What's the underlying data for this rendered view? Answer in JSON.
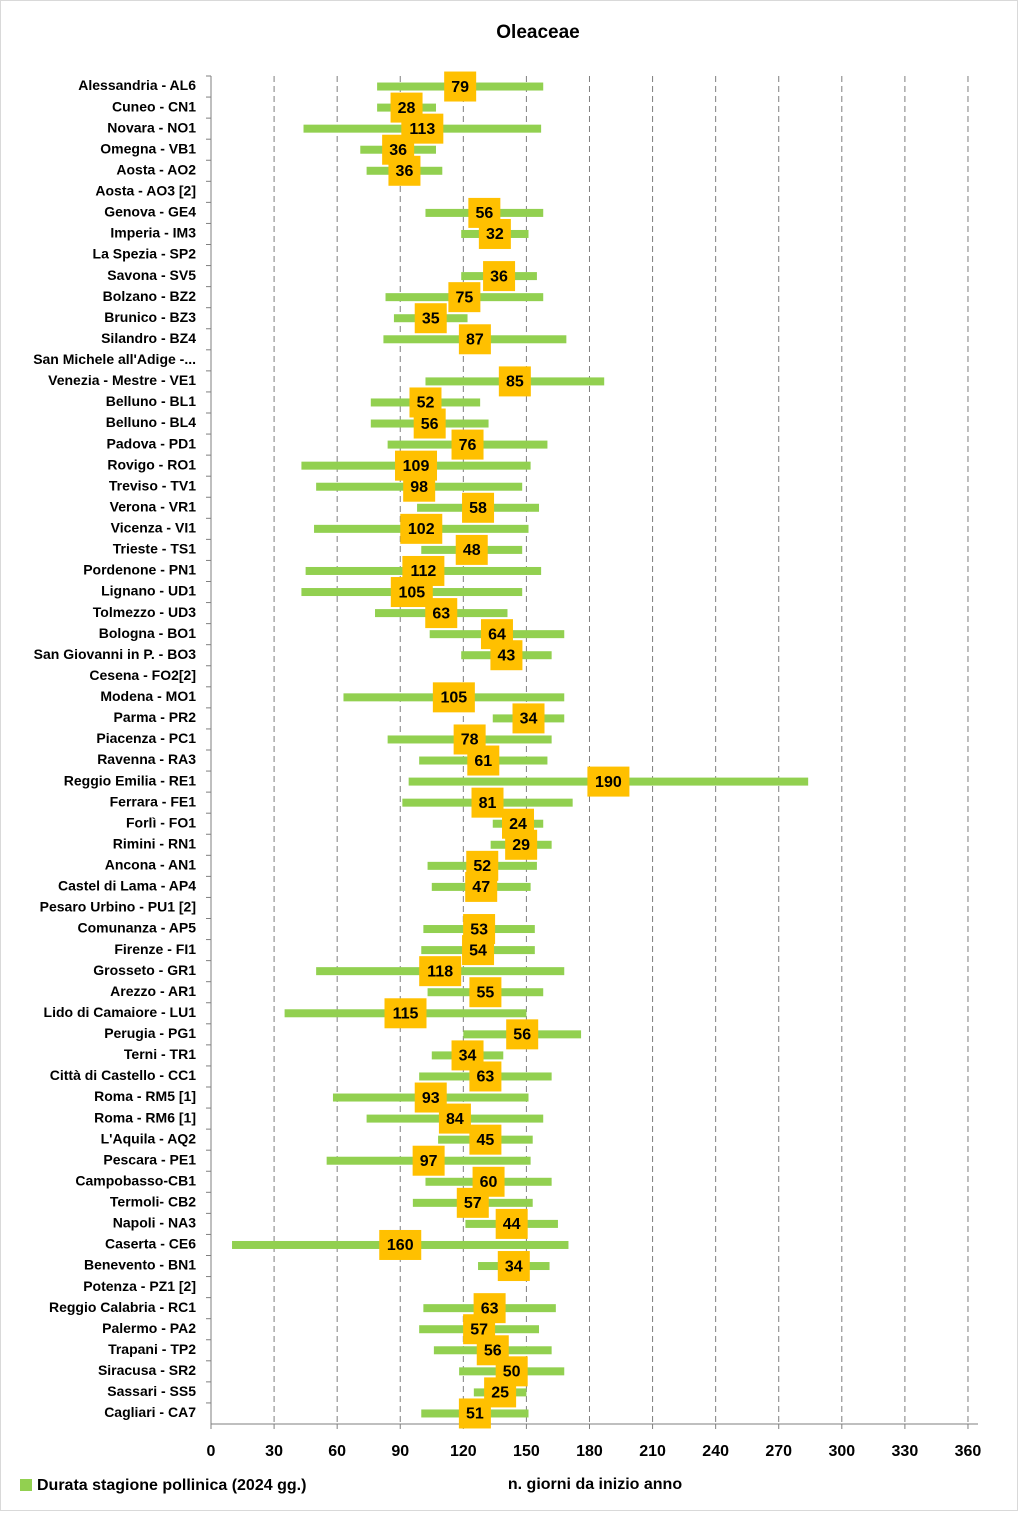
{
  "chart_data": {
    "type": "bar",
    "orientation": "horizontal",
    "stacked": true,
    "title": "Oleaceae",
    "x_label": "n. giorni da inizio anno",
    "categories": [
      "Alessandria - AL6",
      "Cuneo - CN1",
      "Novara - NO1",
      "Omegna - VB1",
      "Aosta - AO2",
      "Aosta - AO3 [2]",
      "Genova - GE4",
      "Imperia - IM3",
      "La Spezia - SP2",
      "Savona - SV5",
      "Bolzano - BZ2",
      "Brunico - BZ3",
      "Silandro - BZ4",
      "San Michele all'Adige -...",
      "Venezia - Mestre - VE1",
      "Belluno - BL1",
      "Belluno - BL4",
      "Padova - PD1",
      "Rovigo - RO1",
      "Treviso - TV1",
      "Verona - VR1",
      "Vicenza - VI1",
      "Trieste - TS1",
      "Pordenone - PN1",
      "Lignano - UD1",
      "Tolmezzo - UD3",
      "Bologna - BO1",
      "San Giovanni in P. - BO3",
      "Cesena - FO2[2]",
      "Modena - MO1",
      "Parma - PR2",
      "Piacenza - PC1",
      "Ravenna - RA3",
      "Reggio Emilia - RE1",
      "Ferrara - FE1",
      "Forlì - FO1",
      "Rimini - RN1",
      "Ancona - AN1",
      "Castel di Lama - AP4",
      "Pesaro Urbino - PU1 [2]",
      "Comunanza - AP5",
      "Firenze - FI1",
      "Grosseto - GR1",
      "Arezzo - AR1",
      "Lido di Camaiore - LU1",
      "Perugia - PG1",
      "Terni - TR1",
      "Città di Castello - CC1",
      "Roma - RM5 [1]",
      "Roma - RM6 [1]",
      "L'Aquila - AQ2",
      "Pescara - PE1",
      "Campobasso-CB1",
      "Termoli- CB2",
      "Napoli - NA3",
      "Caserta - CE6",
      "Benevento  - BN1",
      "Potenza - PZ1 [2]",
      "Reggio Calabria - RC1",
      "Palermo - PA2",
      "Trapani - TP2",
      "Siracusa - SR2",
      "Sassari - SS5",
      "Cagliari - CA7"
    ],
    "base": [
      79,
      79,
      44,
      71,
      74,
      null,
      102,
      119,
      null,
      119,
      83,
      87,
      82,
      null,
      102,
      76,
      76,
      84,
      43,
      50,
      98,
      49,
      100,
      45,
      43,
      78,
      104,
      119,
      null,
      63,
      134,
      84,
      99,
      94,
      91,
      134,
      133,
      103,
      105,
      null,
      101,
      100,
      50,
      103,
      35,
      120,
      105,
      99,
      58,
      74,
      108,
      55,
      102,
      96,
      121,
      10,
      127,
      null,
      101,
      99,
      106,
      118,
      125,
      100
    ],
    "series": [
      {
        "name": "Durata stagione pollinica (2024 gg.)",
        "color": "#92d050",
        "label_color": "#ffc000",
        "values": [
          79,
          28,
          113,
          36,
          36,
          null,
          56,
          32,
          null,
          36,
          75,
          35,
          87,
          null,
          85,
          52,
          56,
          76,
          109,
          98,
          58,
          102,
          48,
          112,
          105,
          63,
          64,
          43,
          null,
          105,
          34,
          78,
          61,
          190,
          81,
          24,
          29,
          52,
          47,
          null,
          53,
          54,
          118,
          55,
          115,
          56,
          34,
          63,
          93,
          84,
          45,
          97,
          60,
          57,
          44,
          160,
          34,
          null,
          63,
          57,
          56,
          50,
          25,
          51
        ]
      }
    ],
    "xlim": [
      0,
      370
    ],
    "xticks": [
      0,
      30,
      60,
      90,
      120,
      150,
      180,
      210,
      240,
      270,
      300,
      330,
      360
    ],
    "grid": true,
    "legend": "bottom-left"
  }
}
